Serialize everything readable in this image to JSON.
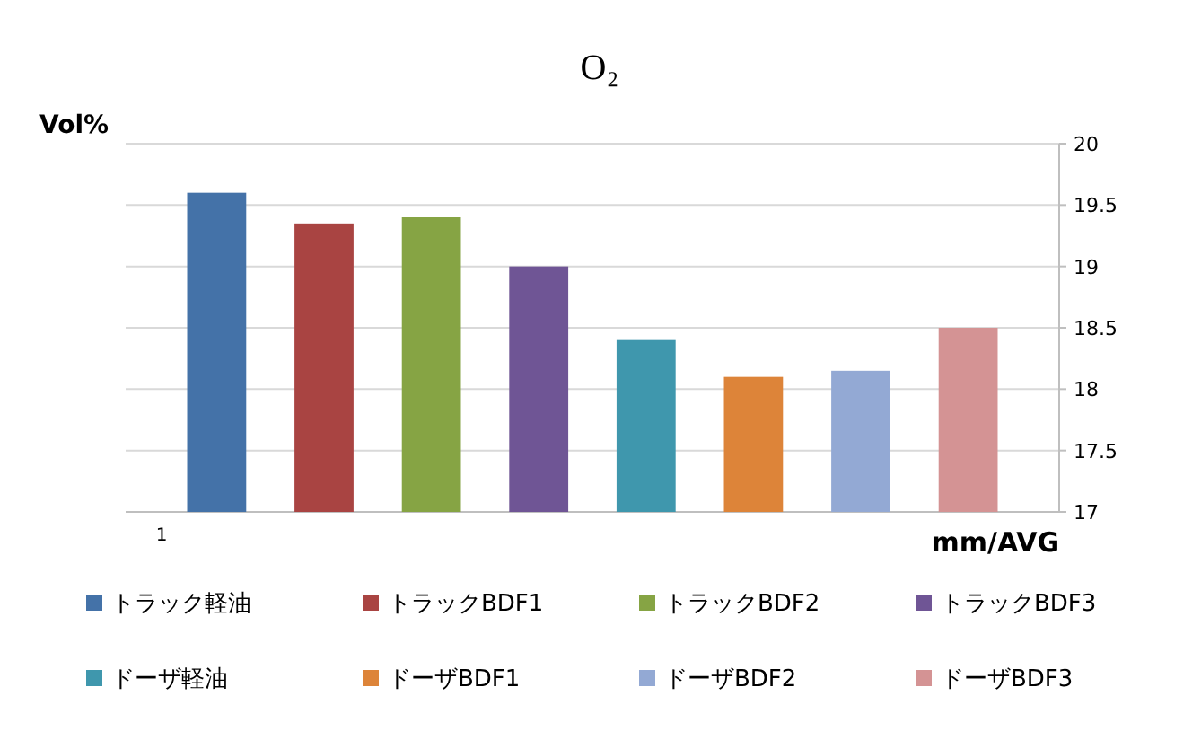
{
  "chart_data": {
    "type": "bar",
    "title": "O₂",
    "ylabel": "Vol%",
    "xlabel": "mm/AVG",
    "categories": [
      "1"
    ],
    "series": [
      {
        "name": "トラック軽油",
        "color": "#4472a8",
        "values": [
          19.6
        ]
      },
      {
        "name": "トラックBDF1",
        "color": "#a94442",
        "values": [
          19.35
        ]
      },
      {
        "name": "トラックBDF2",
        "color": "#86a444",
        "values": [
          19.4
        ]
      },
      {
        "name": "トラックBDF3",
        "color": "#6f5595",
        "values": [
          19.0
        ]
      },
      {
        "name": "ドーザ軽油",
        "color": "#3f97ad",
        "values": [
          18.4
        ]
      },
      {
        "name": "ドーザBDF1",
        "color": "#dd8439",
        "values": [
          18.1
        ]
      },
      {
        "name": "ドーザBDF2",
        "color": "#93a9d4",
        "values": [
          18.15
        ]
      },
      {
        "name": "ドーザBDF3",
        "color": "#d49394",
        "values": [
          18.5
        ]
      }
    ],
    "ylim": [
      17,
      20
    ],
    "yticks": [
      17,
      17.5,
      18,
      18.5,
      19,
      19.5,
      20
    ],
    "grid": "y",
    "legend": "bottom"
  }
}
